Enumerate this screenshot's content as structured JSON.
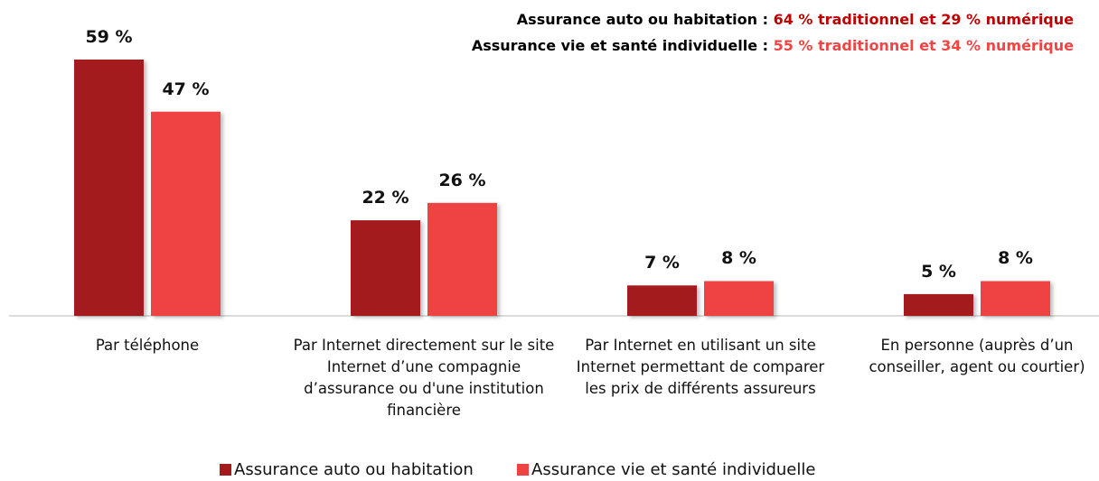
{
  "chart_data": {
    "type": "bar",
    "annotations": [
      {
        "label": "Assurance auto ou habitation :",
        "text": "64 % traditionnel et 29 % numérique",
        "color": "#c00000"
      },
      {
        "label": "Assurance vie et santé individuelle :",
        "text": "55 % traditionnel et 34 % numérique",
        "color": "#f04545"
      }
    ],
    "categories": [
      "Par téléphone",
      "Par Internet directement sur le site Internet d’une compagnie d’assurance ou d'une institution financière",
      "Par Internet en utilisant un site Internet permettant de comparer les prix de différents assureurs",
      "En personne (auprès d’un conseiller, agent ou courtier)"
    ],
    "series": [
      {
        "name": "Assurance auto ou habitation",
        "color": "#a31b1d",
        "values": [
          59,
          22,
          7,
          5
        ],
        "value_labels": [
          "59 %",
          "22 %",
          "7 %",
          "5 %"
        ]
      },
      {
        "name": "Assurance vie et santé individuelle",
        "color": "#ef4343",
        "values": [
          47,
          26,
          8,
          8
        ],
        "value_labels": [
          "47 %",
          "26 %",
          "8 %",
          "8 %"
        ]
      }
    ],
    "legend": "bottom"
  }
}
